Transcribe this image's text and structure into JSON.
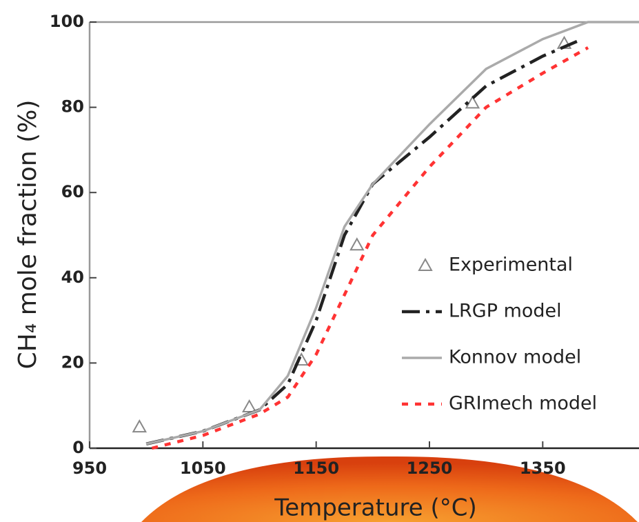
{
  "chart_data": {
    "type": "line",
    "y_label": "CH₄ mole fraction (%)",
    "x_label": "Temperature (°C)",
    "xlim": [
      950,
      1435
    ],
    "xticks": [
      950,
      1050,
      1150,
      1250,
      1350
    ],
    "ylim": [
      0,
      100
    ],
    "yticks": [
      0,
      20,
      40,
      60,
      80,
      100
    ],
    "series": [
      {
        "name": "Experimental",
        "color": "#888888",
        "line_style": "none",
        "marker": "triangle",
        "x": [
          994,
          1091,
          1137,
          1186,
          1288,
          1369
        ],
        "values": [
          5,
          9.7,
          20.7,
          47.7,
          81,
          95
        ]
      },
      {
        "name": "LRGP model",
        "color": "#222222",
        "line_style": "dashdot",
        "marker": "none",
        "x": [
          1000,
          1050,
          1100,
          1125,
          1150,
          1175,
          1200,
          1250,
          1300,
          1350,
          1385
        ],
        "values": [
          1,
          4,
          9,
          15,
          30,
          50,
          62,
          73,
          85,
          92,
          96
        ]
      },
      {
        "name": "Konnov model",
        "color": "#aaaaaa",
        "line_style": "solid",
        "marker": "none",
        "x": [
          1000,
          1050,
          1100,
          1125,
          1150,
          1175,
          1200,
          1250,
          1300,
          1350,
          1390,
          1435
        ],
        "values": [
          1,
          4,
          9,
          17,
          33,
          52,
          62,
          76,
          89,
          96,
          100,
          100
        ]
      },
      {
        "name": "GRImech model",
        "color": "#ff3333",
        "line_style": "dotted",
        "marker": "none",
        "x": [
          1005,
          1050,
          1100,
          1125,
          1150,
          1175,
          1200,
          1250,
          1300,
          1350,
          1390
        ],
        "values": [
          0,
          3,
          8,
          12,
          22,
          36,
          50,
          66,
          80,
          88,
          94
        ]
      }
    ],
    "legend": "center-right"
  }
}
